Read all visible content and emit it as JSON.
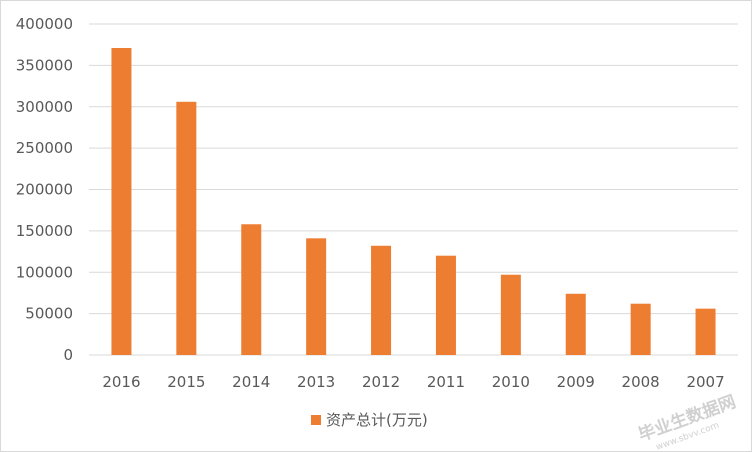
{
  "chart_data": {
    "type": "bar",
    "categories": [
      "2016",
      "2015",
      "2014",
      "2013",
      "2012",
      "2011",
      "2010",
      "2009",
      "2008",
      "2007"
    ],
    "series": [
      {
        "name": "资产总计(万元)",
        "values": [
          371000,
          306000,
          158000,
          141000,
          132000,
          120000,
          97000,
          74000,
          62000,
          56000
        ]
      }
    ],
    "yticks": [
      "0",
      "50000",
      "100000",
      "150000",
      "200000",
      "250000",
      "300000",
      "350000",
      "400000"
    ],
    "ylim": [
      0,
      400000
    ],
    "grid": true,
    "legend_position": "bottom",
    "colors": {
      "bar": "#ed7d31",
      "grid": "#d9d9d9",
      "axis_text": "#595959"
    }
  },
  "watermark": {
    "main": "毕业生数据网",
    "sub": "www.sbvv.com"
  }
}
